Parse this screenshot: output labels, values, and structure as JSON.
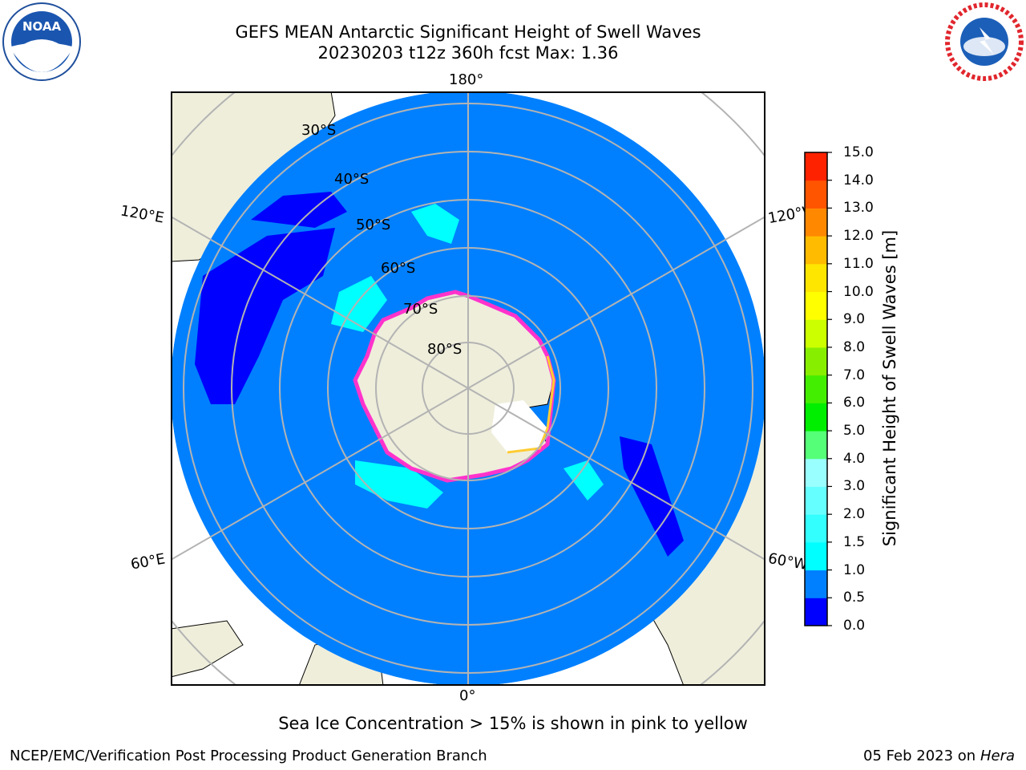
{
  "header": {
    "title_line1": "GEFS MEAN Antarctic Significant Height of Swell Waves",
    "title_line2": "20230203 t12z 360h fcst   Max: 1.36",
    "logos": {
      "left": "NOAA",
      "right": "NATIONAL WEATHER SERVICE"
    }
  },
  "map": {
    "projection": "south-polar-stereographic",
    "ocean_color": "#0080ff",
    "land_color": "#efeedb",
    "grid_color": "#b3b3b3",
    "lat_labels": [
      "30°S",
      "40°S",
      "50°S",
      "60°S",
      "70°S",
      "80°S"
    ],
    "lon_labels": {
      "top": "180°",
      "bottom": "0°",
      "upper_left": "120°E",
      "upper_right": "120°W",
      "lower_left": "60°E",
      "lower_right": "60°W"
    },
    "sea_ice_colors": [
      "#ff66ff",
      "#ff33cc",
      "#ffcc33",
      "#ffff99"
    ]
  },
  "colorbar": {
    "label": "Significant Height of Swell Waves [m]",
    "ticks": [
      "0.0",
      "0.5",
      "1.0",
      "1.5",
      "2.0",
      "3.0",
      "4.0",
      "5.0",
      "6.0",
      "7.0",
      "8.0",
      "9.0",
      "10.0",
      "11.0",
      "12.0",
      "13.0",
      "14.0",
      "15.0"
    ],
    "colors": [
      "#0000ff",
      "#0080ff",
      "#00ffff",
      "#33ffff",
      "#66ffff",
      "#99ffff",
      "#55ff77",
      "#00ee00",
      "#44ee00",
      "#88ee00",
      "#ccff00",
      "#ffff00",
      "#ffe600",
      "#ffbb00",
      "#ff8800",
      "#ff5500",
      "#ff2200",
      "#ff0000"
    ]
  },
  "footer": {
    "sea_ice_note": "Sea Ice Concentration > 15% is shown in pink to yellow",
    "credit": "NCEP/EMC/Verification Post Processing Product Generation Branch",
    "date": "05 Feb 2023 on",
    "machine": "Hera"
  }
}
